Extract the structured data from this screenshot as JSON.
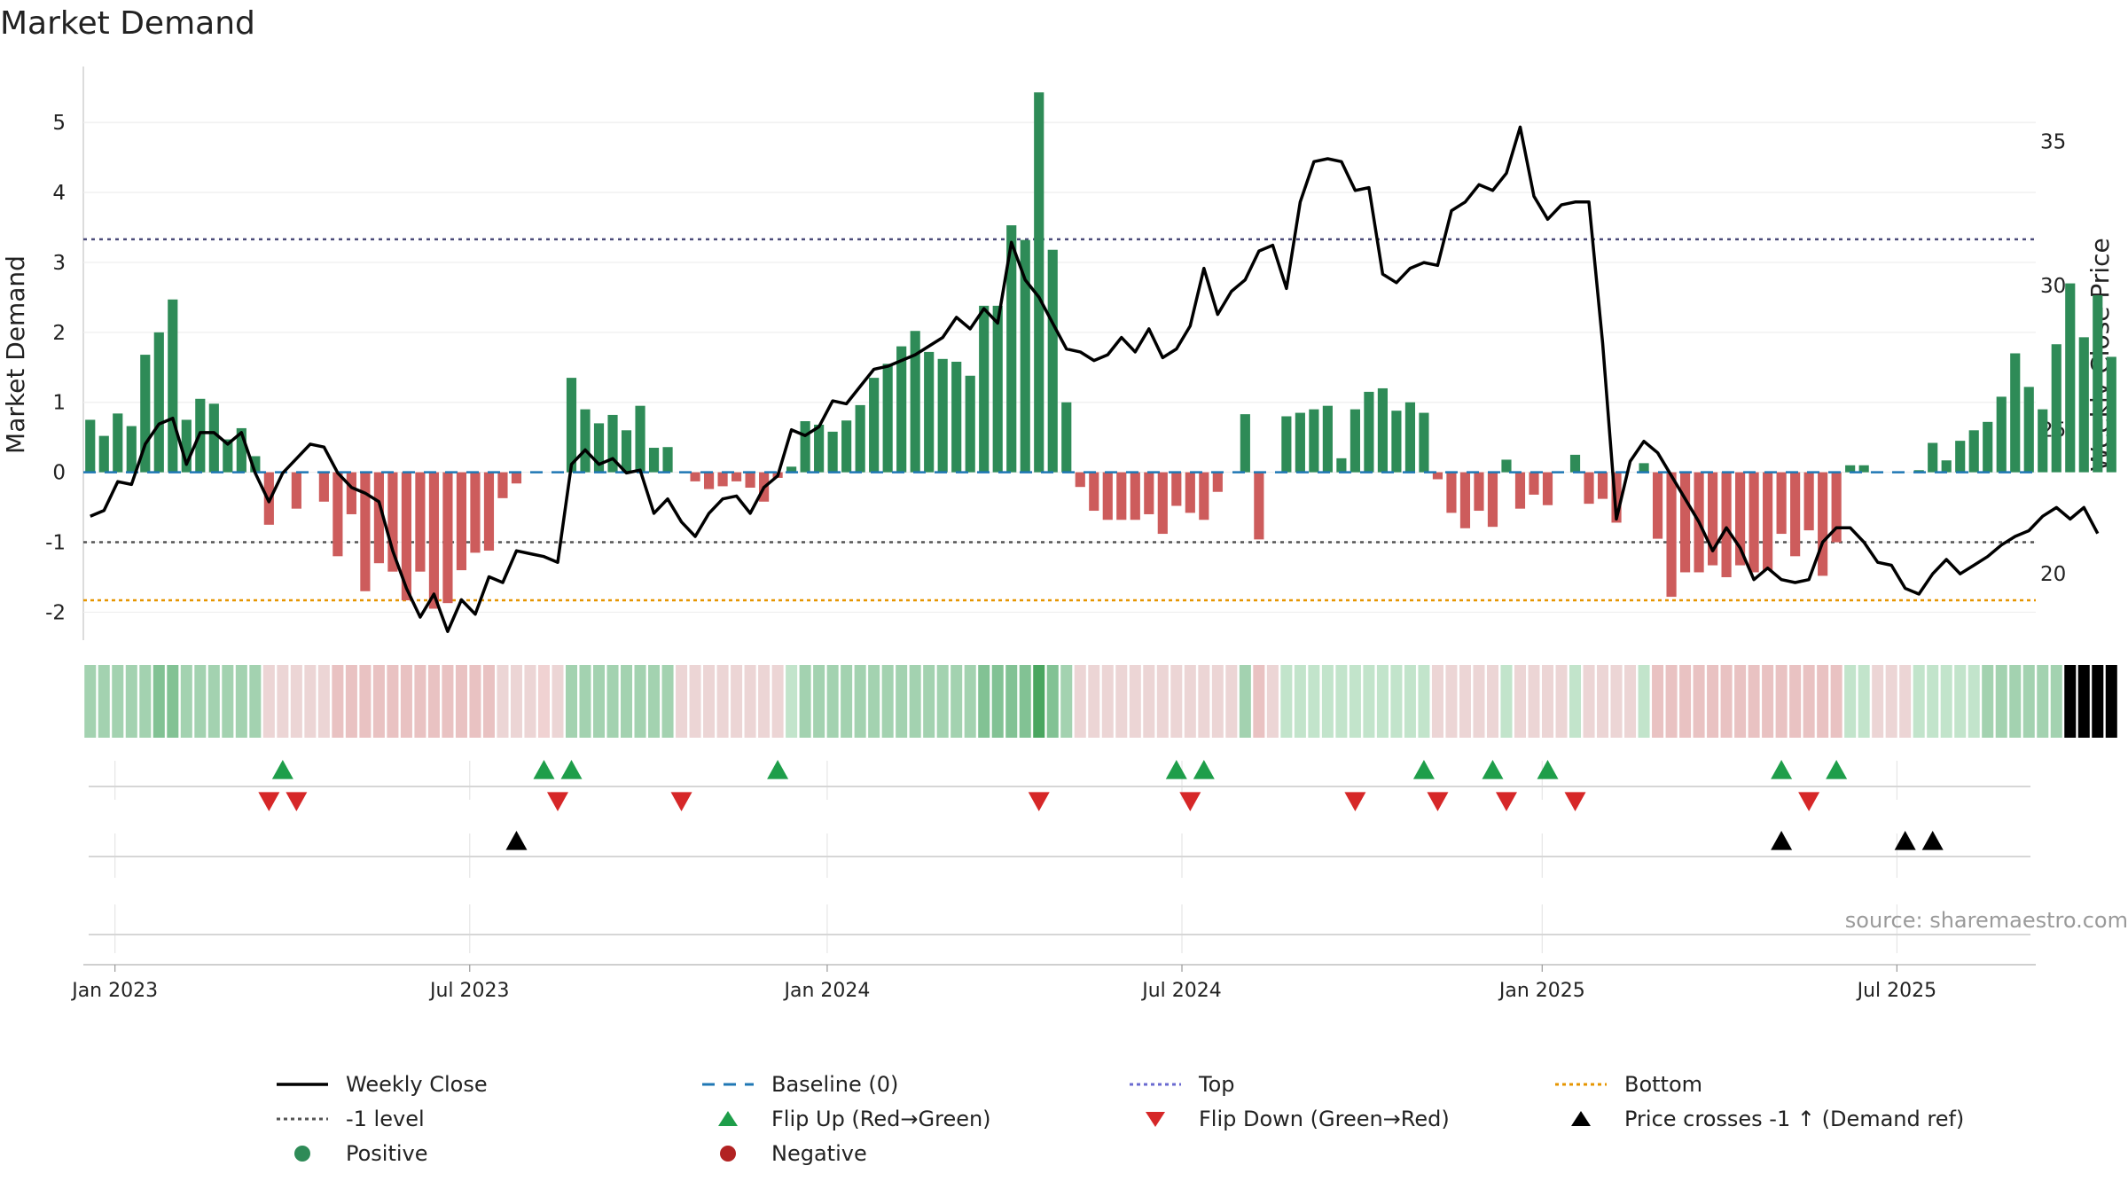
{
  "title": "Market Demand",
  "source": "source: sharemaestro.com",
  "colors": {
    "positive": "#2e8b57",
    "negative": "#cd5c5c",
    "price": "#000000",
    "baseline": "#1f77b4",
    "top": "#4b4b7a",
    "bottom": "#e69500",
    "level": "#555555",
    "flip_up": "#1e9e4a",
    "flip_down": "#d62728"
  },
  "legend": [
    {
      "label": "Weekly Close",
      "kind": "solid-line",
      "color": "#000000"
    },
    {
      "label": "Baseline (0)",
      "kind": "dashed-line",
      "color": "#1f77b4"
    },
    {
      "label": "Top",
      "kind": "dotted-line",
      "color": "#6a6ad0"
    },
    {
      "label": "Bottom",
      "kind": "dotted-line",
      "color": "#e69500"
    },
    {
      "label": "-1 level",
      "kind": "dotted-line",
      "color": "#555555"
    },
    {
      "label": "Flip Up (Red→Green)",
      "kind": "triangle-up",
      "color": "#1e9e4a"
    },
    {
      "label": "Flip Down (Green→Red)",
      "kind": "triangle-down",
      "color": "#d62728"
    },
    {
      "label": "Price crosses -1 ↑ (Demand ref)",
      "kind": "triangle-up",
      "color": "#000000"
    },
    {
      "label": "Positive",
      "kind": "dot",
      "color": "#2e8b57"
    },
    {
      "label": "Negative",
      "kind": "dot",
      "color": "#b22222"
    }
  ],
  "chart_data": {
    "type": "bar",
    "title": "Market Demand",
    "ylabel": "Market Demand",
    "y2label": "Weekly Close Price",
    "ylim": [
      -2.4,
      5.8
    ],
    "y2lim": [
      17.7,
      37.6
    ],
    "yticks": [
      -2,
      -1,
      0,
      1,
      2,
      3,
      4,
      5
    ],
    "y2ticks": [
      20,
      25,
      30,
      35
    ],
    "x_start_week": -0.5,
    "x_end_week": 141.5,
    "xticks": [
      {
        "label": "Jan 2023",
        "week": 1.8
      },
      {
        "label": "Jul 2023",
        "week": 27.6
      },
      {
        "label": "Jan 2024",
        "week": 53.6
      },
      {
        "label": "Jul 2024",
        "week": 79.4
      },
      {
        "label": "Jan 2025",
        "week": 105.6
      },
      {
        "label": "Jul 2025",
        "week": 131.4
      }
    ],
    "reference_lines": {
      "top": 3.33,
      "level": -1,
      "bottom": -1.83,
      "baseline": 0
    },
    "grid": true,
    "demand": [
      0.75,
      0.52,
      0.84,
      0.66,
      1.68,
      2.0,
      2.47,
      0.75,
      1.05,
      0.98,
      0.47,
      0.63,
      0.23,
      -0.75,
      0,
      -0.52,
      0,
      -0.42,
      -1.2,
      -0.6,
      -1.7,
      -1.3,
      -1.42,
      -1.83,
      -1.42,
      -1.95,
      -1.87,
      -1.4,
      -1.15,
      -1.12,
      -0.37,
      -0.16,
      0,
      0,
      0,
      1.35,
      0.9,
      0.7,
      0.82,
      0.6,
      0.95,
      0.35,
      0.36,
      0,
      -0.13,
      -0.24,
      -0.2,
      -0.13,
      -0.22,
      -0.42,
      -0.08,
      0.08,
      0.73,
      0.68,
      0.58,
      0.74,
      0.96,
      1.35,
      1.55,
      1.8,
      2.02,
      1.72,
      1.62,
      1.58,
      1.38,
      2.38,
      2.38,
      3.53,
      3.32,
      5.43,
      3.18,
      1.0,
      -0.21,
      -0.55,
      -0.68,
      -0.68,
      -0.68,
      -0.6,
      -0.88,
      -0.48,
      -0.58,
      -0.68,
      -0.28,
      0,
      0.83,
      -0.96,
      0,
      0.8,
      0.85,
      0.9,
      0.95,
      0.2,
      0.9,
      1.15,
      1.2,
      0.88,
      1.0,
      0.85,
      -0.1,
      -0.58,
      -0.8,
      -0.55,
      -0.78,
      0.18,
      -0.52,
      -0.32,
      -0.47,
      0,
      0.25,
      -0.45,
      -0.38,
      -0.72,
      0,
      0.13,
      -0.95,
      -1.78,
      -1.43,
      -1.43,
      -1.33,
      -1.5,
      -1.33,
      -1.43,
      -1.4,
      -0.88,
      -1.2,
      -0.83,
      -1.48,
      -1.0,
      0.1,
      0.1,
      0,
      0,
      0,
      0.03,
      0.42,
      0.17,
      0.45,
      0.6,
      0.72,
      1.08,
      1.7,
      1.22,
      0.9,
      1.83,
      2.7,
      1.93,
      2.53,
      1.65
    ],
    "shade": [
      2,
      2,
      2,
      2,
      2,
      3,
      3,
      2,
      2,
      2,
      2,
      2,
      2,
      1,
      1,
      1,
      1,
      1,
      2,
      2,
      2,
      2,
      2,
      2,
      2,
      2,
      2,
      2,
      2,
      2,
      1,
      1,
      1,
      0,
      1,
      2,
      2,
      2,
      2,
      2,
      2,
      2,
      2,
      1,
      1,
      1,
      1,
      1,
      1,
      1,
      1,
      1,
      2,
      2,
      2,
      2,
      2,
      2,
      2,
      2,
      2,
      2,
      2,
      2,
      2,
      3,
      3,
      3,
      3,
      4,
      3,
      2,
      1,
      1,
      1,
      1,
      1,
      1,
      1,
      1,
      1,
      1,
      1,
      1,
      2,
      2,
      1,
      1,
      1,
      1,
      1,
      1,
      1,
      1,
      1,
      1,
      1,
      1,
      1,
      1,
      1,
      1,
      1,
      1,
      1,
      1,
      1,
      1,
      1,
      1,
      1,
      1,
      1,
      1,
      2,
      2,
      2,
      2,
      2,
      2,
      2,
      2,
      2,
      2,
      2,
      2,
      2,
      2,
      1,
      1,
      1,
      1,
      1,
      1,
      1,
      1,
      1,
      1,
      2,
      2,
      2,
      2,
      2,
      2
    ],
    "price": [
      22.0,
      22.2,
      23.2,
      23.1,
      24.5,
      25.2,
      25.4,
      23.8,
      24.9,
      24.9,
      24.5,
      24.9,
      23.5,
      22.5,
      23.5,
      24.0,
      24.5,
      24.4,
      23.5,
      23.0,
      22.8,
      22.5,
      20.8,
      19.5,
      18.5,
      19.3,
      18.0,
      19.1,
      18.6,
      19.9,
      19.7,
      20.8,
      20.7,
      20.6,
      20.4,
      23.8,
      24.3,
      23.8,
      24.0,
      23.5,
      23.6,
      22.1,
      22.6,
      21.8,
      21.3,
      22.1,
      22.6,
      22.7,
      22.1,
      23.0,
      23.4,
      25.0,
      24.8,
      25.1,
      26.0,
      25.9,
      26.5,
      27.1,
      27.2,
      27.4,
      27.6,
      27.9,
      28.2,
      28.9,
      28.5,
      29.2,
      28.7,
      31.5,
      30.2,
      29.6,
      28.7,
      27.8,
      27.7,
      27.4,
      27.6,
      28.2,
      27.7,
      28.5,
      27.5,
      27.8,
      28.6,
      30.6,
      29.0,
      29.8,
      30.2,
      31.2,
      31.4,
      29.9,
      32.9,
      34.3,
      34.4,
      34.3,
      33.3,
      33.4,
      30.4,
      30.1,
      30.6,
      30.8,
      30.7,
      32.6,
      32.9,
      33.5,
      33.3,
      33.9,
      35.5,
      33.1,
      32.3,
      32.8,
      32.9,
      32.9,
      28.0,
      21.9,
      23.9,
      24.6,
      24.2,
      23.4,
      22.6,
      21.8,
      20.8,
      21.6,
      20.9,
      19.8,
      20.2,
      19.8,
      19.7,
      19.8,
      21.1,
      21.6,
      21.6,
      21.1,
      20.4,
      20.3,
      19.5,
      19.3,
      20.0,
      20.5,
      20.0,
      20.3,
      20.6,
      21.0,
      21.3,
      21.5,
      22.0,
      22.3,
      21.9,
      22.3,
      21.4
    ],
    "flip_up_weeks": [
      14,
      33,
      35,
      50,
      79,
      81,
      97,
      102,
      106,
      123,
      127
    ],
    "flip_down_weeks": [
      13,
      15,
      34,
      43,
      69,
      80,
      92,
      98,
      103,
      108,
      125
    ],
    "price_cross_weeks": [
      31,
      123,
      132,
      134
    ]
  }
}
